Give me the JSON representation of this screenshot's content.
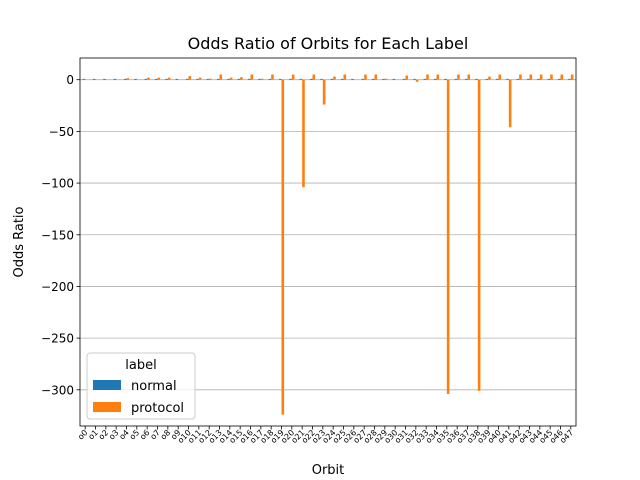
{
  "chart_data": {
    "type": "bar",
    "title": "Odds Ratio of Orbits for Each Label",
    "xlabel": "Orbit",
    "ylabel": "Odds Ratio",
    "ylim": [
      -335,
      21
    ],
    "yticks": [
      0,
      -50,
      -100,
      -150,
      -200,
      -250,
      -300
    ],
    "ytick_labels": [
      "0",
      "−50",
      "−100",
      "−150",
      "−200",
      "−250",
      "−300"
    ],
    "grid": "y",
    "legend_title": "label",
    "legend_position": "lower-left",
    "categories": [
      "o0",
      "o1",
      "o2",
      "o3",
      "o4",
      "o5",
      "o6",
      "o7",
      "o8",
      "o9",
      "o10",
      "o11",
      "o12",
      "o13",
      "o14",
      "o15",
      "o16",
      "o17",
      "o18",
      "o19",
      "o20",
      "o21",
      "o22",
      "o23",
      "o24",
      "o25",
      "o26",
      "o27",
      "o28",
      "o29",
      "o30",
      "o31",
      "o32",
      "o33",
      "o34",
      "o35",
      "o36",
      "o37",
      "o38",
      "o39",
      "o40",
      "o41",
      "o42",
      "o43",
      "o44",
      "o45",
      "o46",
      "o47"
    ],
    "series": [
      {
        "name": "normal",
        "color": "#1f77b4",
        "values": [
          0.8,
          0.8,
          0.8,
          0.8,
          0.8,
          0.8,
          0.8,
          0.8,
          0.8,
          0.8,
          0.8,
          0.8,
          0.8,
          0.8,
          0.8,
          0.8,
          0.8,
          0.8,
          0.8,
          0.8,
          0.8,
          0.8,
          0.8,
          0.8,
          0.8,
          0.8,
          0.8,
          0.8,
          0.8,
          0.8,
          0.8,
          0.8,
          0.8,
          0.8,
          0.8,
          0.8,
          0.8,
          0.8,
          0.8,
          0.8,
          0.8,
          0.8,
          0.8,
          0.8,
          0.8,
          0.8,
          0.8,
          0.8
        ]
      },
      {
        "name": "protocol",
        "color": "#ff7f0e",
        "values": [
          0,
          0,
          0,
          0,
          1.5,
          0,
          2,
          2,
          2,
          0,
          3.5,
          2,
          1,
          5,
          2,
          2.5,
          5,
          1,
          5,
          -324,
          5,
          -104,
          5,
          -24,
          3,
          5,
          0,
          5,
          5,
          1,
          0,
          4,
          -2,
          5,
          5,
          -304,
          5,
          5,
          -301,
          3,
          5,
          -46,
          5,
          5,
          5,
          5,
          5,
          5
        ]
      }
    ]
  }
}
